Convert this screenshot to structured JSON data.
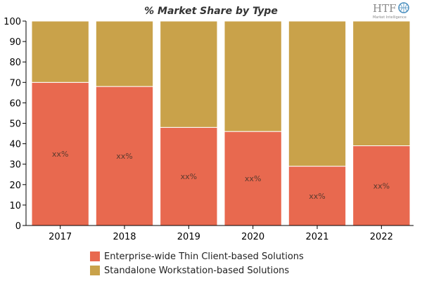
{
  "colors": {
    "series_a": "#e8694f",
    "series_b": "#c9a24a",
    "axis": "#000000",
    "separator": "#ffffff"
  },
  "logo": {
    "text": "HTF",
    "subtext": "Market Intelligence"
  },
  "chart_data": {
    "type": "bar",
    "stacked": true,
    "title": "% Market Share by Type",
    "xlabel": "",
    "ylabel": "",
    "ylim": [
      0,
      100
    ],
    "yticks": [
      0,
      10,
      20,
      30,
      40,
      50,
      60,
      70,
      80,
      90,
      100
    ],
    "categories": [
      "2017",
      "2018",
      "2019",
      "2020",
      "2021",
      "2022"
    ],
    "series": [
      {
        "name": "Enterprise-wide Thin Client-based Solutions",
        "values": [
          70,
          68,
          48,
          46,
          29,
          39
        ],
        "labels": [
          "xx%",
          "xx%",
          "xx%",
          "xx%",
          "xx%",
          "xx%"
        ]
      },
      {
        "name": "Standalone Workstation-based Solutions",
        "values": [
          30,
          32,
          52,
          54,
          71,
          61
        ]
      }
    ],
    "grid": false,
    "legend_position": "bottom"
  }
}
